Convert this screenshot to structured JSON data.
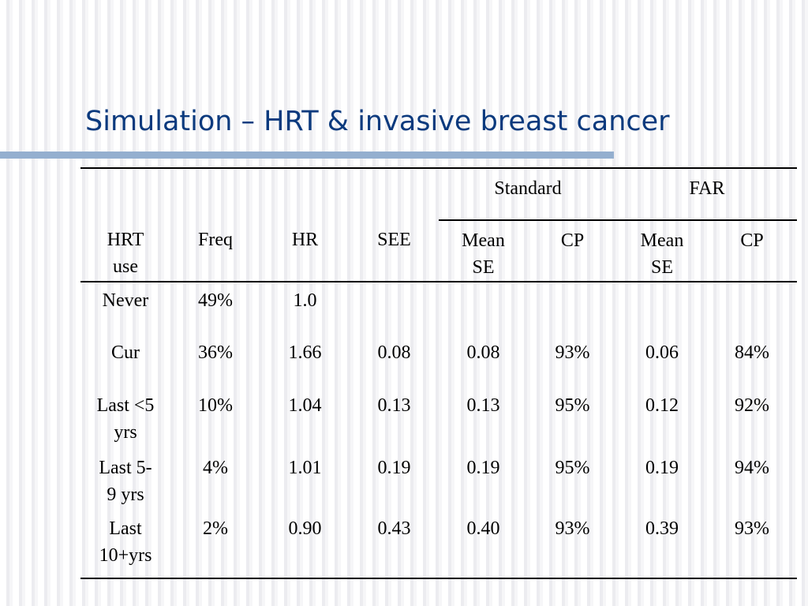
{
  "slide": {
    "title": "Simulation – HRT & invasive breast cancer"
  },
  "table": {
    "groups": {
      "standard": "Standard",
      "far": "FAR"
    },
    "headers": {
      "hrt_use": [
        "HRT",
        "use"
      ],
      "freq": "Freq",
      "hr": "HR",
      "see": "SEE",
      "std_mean_se": [
        "Mean",
        "SE"
      ],
      "std_cp": "CP",
      "far_mean_se": [
        "Mean",
        "SE"
      ],
      "far_cp": "CP"
    },
    "rows": [
      {
        "hrt_use": [
          "Never"
        ],
        "freq": "49%",
        "hr": "1.0",
        "see": "",
        "std_mean_se": "",
        "std_cp": "",
        "far_mean_se": "",
        "far_cp": ""
      },
      {
        "hrt_use": [
          "Cur"
        ],
        "freq": "36%",
        "hr": "1.66",
        "see": "0.08",
        "std_mean_se": "0.08",
        "std_cp": "93%",
        "far_mean_se": "0.06",
        "far_cp": "84%"
      },
      {
        "hrt_use": [
          "Last <5",
          "yrs"
        ],
        "freq": "10%",
        "hr": "1.04",
        "see": "0.13",
        "std_mean_se": "0.13",
        "std_cp": "95%",
        "far_mean_se": "0.12",
        "far_cp": "92%"
      },
      {
        "hrt_use": [
          "Last 5-",
          "9 yrs"
        ],
        "freq": "4%",
        "hr": "1.01",
        "see": "0.19",
        "std_mean_se": "0.19",
        "std_cp": "95%",
        "far_mean_se": "0.19",
        "far_cp": "94%"
      },
      {
        "hrt_use": [
          "Last",
          "10+yrs"
        ],
        "freq": "2%",
        "hr": "0.90",
        "see": "0.43",
        "std_mean_se": "0.40",
        "std_cp": "93%",
        "far_mean_se": "0.39",
        "far_cp": "93%"
      }
    ]
  }
}
